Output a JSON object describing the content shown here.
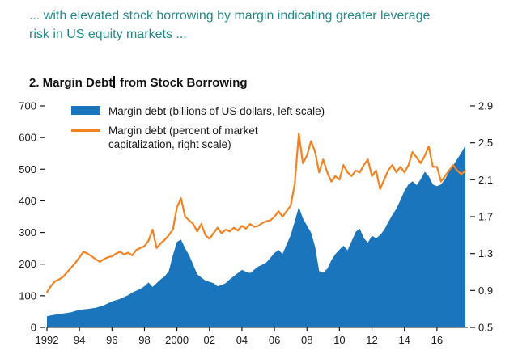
{
  "heading": {
    "line1": "... with elevated stock borrowing by margin indicating greater leverage",
    "line2": "risk in US equity markets ..."
  },
  "figure_title": {
    "part1": "2. Margin Debt",
    "part2": "from Stock Borrowing"
  },
  "legend": [
    {
      "label": "Margin debt (billions of US dollars, left scale)",
      "type": "area"
    },
    {
      "label_line1": "Margin debt (percent of market",
      "label_line2": "capitalization, right scale)",
      "type": "line"
    }
  ],
  "colors": {
    "blue": "#1b75bc",
    "orange": "#f58220",
    "heading_teal": "#228b8d",
    "axis_text": "#1a1a1a"
  },
  "chart_data": {
    "type": "area",
    "title": "2. Margin Debt from Stock Borrowing",
    "xlabel": "",
    "ylabel_left": "Margin debt (billions of US dollars)",
    "ylabel_right": "Margin debt (percent of market capitalization)",
    "grid": false,
    "legend_position": "top-left-inside",
    "xlim": [
      1992,
      2017.9
    ],
    "left_axis": {
      "min": 0,
      "max": 700,
      "ticks": [
        0,
        100,
        200,
        300,
        400,
        500,
        600,
        700
      ]
    },
    "right_axis": {
      "min": 0.5,
      "max": 2.9,
      "ticks": [
        0.5,
        0.9,
        1.3,
        1.7,
        2.1,
        2.5,
        2.9
      ]
    },
    "x_ticks": [
      {
        "value": 1992,
        "label": "1992"
      },
      {
        "value": 1994,
        "label": "94"
      },
      {
        "value": 1996,
        "label": "96"
      },
      {
        "value": 1998,
        "label": "98"
      },
      {
        "value": 2000,
        "label": "2000"
      },
      {
        "value": 2002,
        "label": "02"
      },
      {
        "value": 2004,
        "label": "04"
      },
      {
        "value": 2006,
        "label": "06"
      },
      {
        "value": 2008,
        "label": "08"
      },
      {
        "value": 2010,
        "label": "10"
      },
      {
        "value": 2012,
        "label": "12"
      },
      {
        "value": 2014,
        "label": "14"
      },
      {
        "value": 2016,
        "label": "16"
      }
    ],
    "x": [
      1992,
      1992.25,
      1992.5,
      1992.75,
      1993,
      1993.25,
      1993.5,
      1993.75,
      1994,
      1994.25,
      1994.5,
      1994.75,
      1995,
      1995.25,
      1995.5,
      1995.75,
      1996,
      1996.25,
      1996.5,
      1996.75,
      1997,
      1997.25,
      1997.5,
      1997.75,
      1998,
      1998.25,
      1998.5,
      1998.75,
      1999,
      1999.25,
      1999.5,
      1999.75,
      2000,
      2000.25,
      2000.5,
      2000.75,
      2001,
      2001.25,
      2001.5,
      2001.75,
      2002,
      2002.25,
      2002.5,
      2002.75,
      2003,
      2003.25,
      2003.5,
      2003.75,
      2004,
      2004.25,
      2004.5,
      2004.75,
      2005,
      2005.25,
      2005.5,
      2005.75,
      2006,
      2006.25,
      2006.5,
      2006.75,
      2007,
      2007.25,
      2007.5,
      2007.75,
      2008,
      2008.25,
      2008.5,
      2008.75,
      2009,
      2009.25,
      2009.5,
      2009.75,
      2010,
      2010.25,
      2010.5,
      2010.75,
      2011,
      2011.25,
      2011.5,
      2011.75,
      2012,
      2012.25,
      2012.5,
      2012.75,
      2013,
      2013.25,
      2013.5,
      2013.75,
      2014,
      2014.25,
      2014.5,
      2014.75,
      2015,
      2015.25,
      2015.5,
      2015.75,
      2016,
      2016.25,
      2016.5,
      2016.75,
      2017,
      2017.25,
      2017.5,
      2017.75
    ],
    "series": [
      {
        "name": "Margin debt (billions of US dollars, left scale)",
        "type": "area",
        "axis": "left",
        "color": "#1b75bc",
        "values": [
          35,
          38,
          40,
          42,
          44,
          46,
          48,
          52,
          55,
          57,
          58,
          60,
          62,
          66,
          70,
          76,
          82,
          86,
          90,
          96,
          102,
          110,
          116,
          122,
          130,
          142,
          128,
          140,
          152,
          162,
          178,
          228,
          270,
          278,
          250,
          228,
          198,
          168,
          158,
          148,
          144,
          140,
          130,
          134,
          140,
          152,
          162,
          172,
          182,
          176,
          172,
          182,
          192,
          198,
          205,
          220,
          235,
          245,
          232,
          262,
          292,
          335,
          381,
          345,
          322,
          300,
          255,
          178,
          173,
          185,
          212,
          232,
          246,
          258,
          244,
          272,
          302,
          312,
          282,
          268,
          290,
          282,
          292,
          308,
          332,
          355,
          375,
          402,
          432,
          452,
          462,
          450,
          468,
          492,
          478,
          452,
          446,
          452,
          468,
          492,
          512,
          532,
          552,
          575
        ]
      },
      {
        "name": "Margin debt (percent of market capitalization, right scale)",
        "type": "line",
        "axis": "right",
        "color": "#f58220",
        "values": [
          0.88,
          0.95,
          1.0,
          1.02,
          1.05,
          1.1,
          1.15,
          1.2,
          1.26,
          1.32,
          1.3,
          1.27,
          1.24,
          1.21,
          1.24,
          1.26,
          1.27,
          1.3,
          1.32,
          1.29,
          1.31,
          1.28,
          1.34,
          1.36,
          1.38,
          1.44,
          1.56,
          1.36,
          1.41,
          1.45,
          1.5,
          1.56,
          1.8,
          1.9,
          1.7,
          1.66,
          1.62,
          1.54,
          1.62,
          1.5,
          1.46,
          1.52,
          1.58,
          1.52,
          1.56,
          1.54,
          1.58,
          1.55,
          1.6,
          1.57,
          1.62,
          1.59,
          1.6,
          1.63,
          1.65,
          1.66,
          1.7,
          1.76,
          1.7,
          1.76,
          1.82,
          2.06,
          2.6,
          2.28,
          2.36,
          2.52,
          2.4,
          2.18,
          2.32,
          2.18,
          2.08,
          2.14,
          2.1,
          2.26,
          2.18,
          2.14,
          2.2,
          2.18,
          2.26,
          2.32,
          2.14,
          2.2,
          2.0,
          2.1,
          2.2,
          2.26,
          2.18,
          2.24,
          2.18,
          2.26,
          2.4,
          2.34,
          2.28,
          2.36,
          2.46,
          2.24,
          2.24,
          2.08,
          2.14,
          2.2,
          2.26,
          2.2,
          2.16,
          2.2
        ]
      }
    ]
  }
}
